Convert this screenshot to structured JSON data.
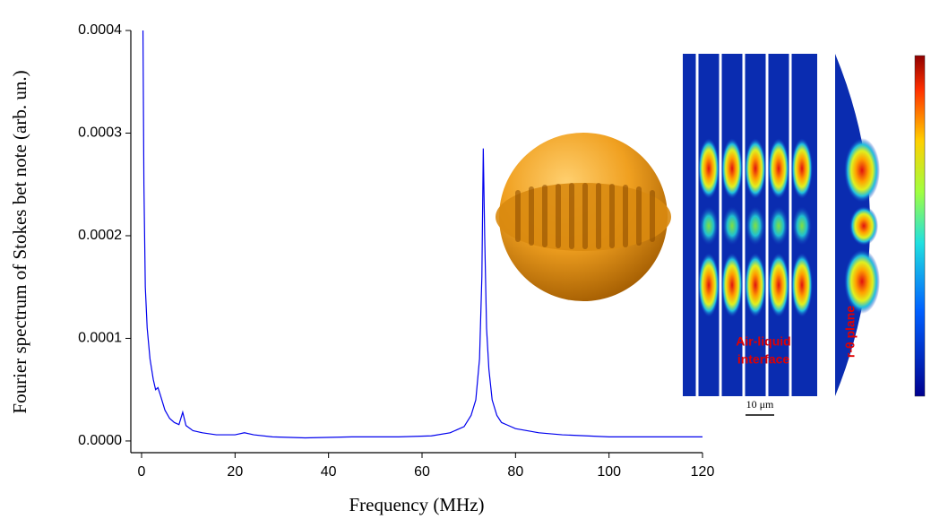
{
  "chart_data": {
    "type": "line",
    "x_label": "Frequency (MHz)",
    "y_label": "Fourier spectrum of Stokes bet note (arb. un.)",
    "x": [
      0.3,
      0.5,
      0.8,
      1.2,
      1.8,
      2.5,
      3,
      3.5,
      4,
      5,
      6,
      7,
      8,
      8.8,
      9.5,
      11,
      13,
      16,
      20,
      22,
      24,
      28,
      35,
      45,
      55,
      62,
      66,
      69,
      70.5,
      71.5,
      72.3,
      72.8,
      73.1,
      73.4,
      73.8,
      74.3,
      75,
      76,
      77,
      78,
      80,
      85,
      90,
      100,
      110,
      120
    ],
    "series": [
      {
        "color": "#0000ee",
        "values": [
          0.0004,
          0.00025,
          0.00015,
          0.00011,
          8e-05,
          6e-05,
          5e-05,
          5.2e-05,
          4.5e-05,
          3e-05,
          2.2e-05,
          1.8e-05,
          1.6e-05,
          2.8e-05,
          1.5e-05,
          1e-05,
          8e-06,
          6e-06,
          6e-06,
          8e-06,
          6e-06,
          4e-06,
          3e-06,
          4e-06,
          4e-06,
          5e-06,
          8e-06,
          1.4e-05,
          2.5e-05,
          4e-05,
          8e-05,
          0.00016,
          0.000285,
          0.0002,
          0.00011,
          7e-05,
          4e-05,
          2.5e-05,
          1.8e-05,
          1.6e-05,
          1.2e-05,
          8e-06,
          6e-06,
          4e-06,
          4e-06,
          4e-06
        ]
      }
    ],
    "xlim": [
      -2.3,
      120
    ],
    "ylim": [
      -1.14e-05,
      0.0004
    ],
    "xticks": [
      0,
      20,
      40,
      60,
      80,
      100,
      120
    ],
    "yticks": [
      {
        "value": 0,
        "label": "0.0000"
      },
      {
        "value": 0.0001,
        "label": "0.0001"
      },
      {
        "value": 0.0002,
        "label": "0.0002"
      },
      {
        "value": 0.0003,
        "label": "0.0003"
      },
      {
        "value": 0.0004,
        "label": "0.0004"
      }
    ],
    "annotations": [
      "Air-liquid",
      "interface",
      "r-θ plane",
      "10 μm"
    ]
  }
}
